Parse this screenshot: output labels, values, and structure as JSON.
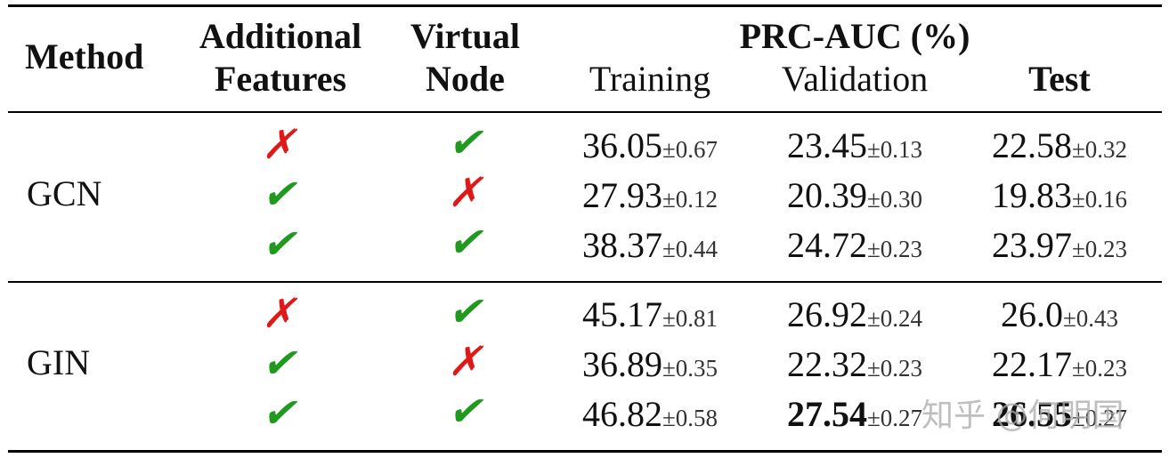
{
  "header": {
    "method": "Method",
    "additional_features": [
      "Additional",
      "Features"
    ],
    "virtual_node": [
      "Virtual",
      "Node"
    ],
    "metric": "PRC-AUC (%)",
    "training": "Training",
    "validation": "Validation",
    "test": "Test"
  },
  "check_glyph": "✔",
  "cross_glyph": "✗",
  "groups": [
    {
      "method": "GCN",
      "rows": [
        {
          "features": false,
          "virtual": true,
          "training": {
            "v": "36.05",
            "s": "±0.67"
          },
          "validation": {
            "v": "23.45",
            "s": "±0.13"
          },
          "test": {
            "v": "22.58",
            "s": "±0.32"
          }
        },
        {
          "features": true,
          "virtual": false,
          "training": {
            "v": "27.93",
            "s": "±0.12"
          },
          "validation": {
            "v": "20.39",
            "s": "±0.30"
          },
          "test": {
            "v": "19.83",
            "s": "±0.16"
          }
        },
        {
          "features": true,
          "virtual": true,
          "training": {
            "v": "38.37",
            "s": "±0.44"
          },
          "validation": {
            "v": "24.72",
            "s": "±0.23"
          },
          "test": {
            "v": "23.97",
            "s": "±0.23"
          }
        }
      ]
    },
    {
      "method": "GIN",
      "rows": [
        {
          "features": false,
          "virtual": true,
          "training": {
            "v": "45.17",
            "s": "±0.81"
          },
          "validation": {
            "v": "26.92",
            "s": "±0.24"
          },
          "test": {
            "v": "26.0",
            "s": "±0.43"
          }
        },
        {
          "features": true,
          "virtual": false,
          "training": {
            "v": "36.89",
            "s": "±0.35"
          },
          "validation": {
            "v": "22.32",
            "s": "±0.23"
          },
          "test": {
            "v": "22.17",
            "s": "±0.23"
          }
        },
        {
          "features": true,
          "virtual": true,
          "training": {
            "v": "46.82",
            "s": "±0.58"
          },
          "validation": {
            "v": "27.54",
            "s": "±0.27",
            "bold": true
          },
          "test": {
            "v": "26.55",
            "s": "±0.27",
            "bold": true
          }
        }
      ]
    }
  ],
  "watermark": "知乎 @何明国"
}
